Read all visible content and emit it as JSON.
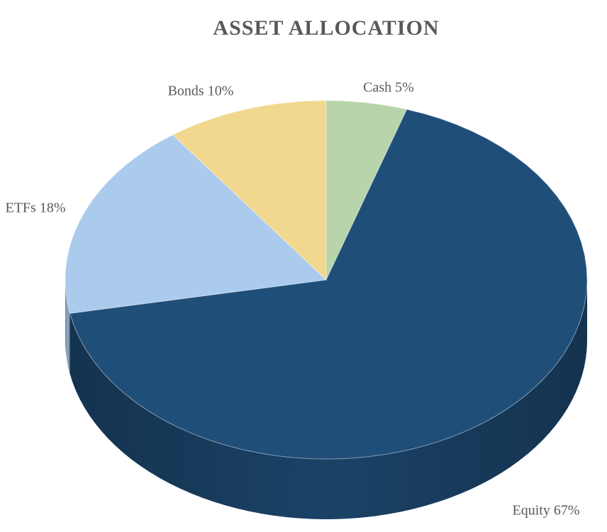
{
  "chart_data": {
    "type": "pie",
    "title": "ASSET ALLOCATION",
    "categories": [
      "Cash",
      "Equity",
      "ETFs",
      "Bonds"
    ],
    "values": [
      5,
      67,
      18,
      10
    ],
    "value_labels": [
      "Cash 5%",
      "Equity 67%",
      "ETFs 18%",
      "Bonds 10%"
    ],
    "colors": [
      "#b7d4aa",
      "#1f4e79",
      "#aacbec",
      "#f2d78f"
    ]
  }
}
